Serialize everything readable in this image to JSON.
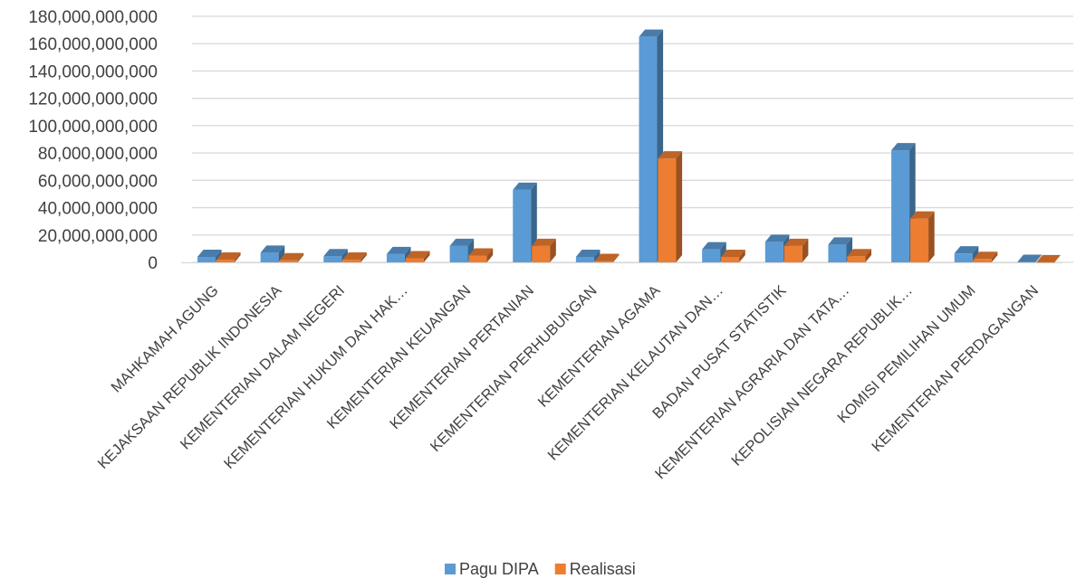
{
  "chart_data": {
    "type": "bar",
    "title": "",
    "xlabel": "",
    "ylabel": "",
    "ylim": [
      0,
      180000000000
    ],
    "yticks": [
      0,
      20000000000,
      40000000000,
      60000000000,
      80000000000,
      100000000000,
      120000000000,
      140000000000,
      160000000000,
      180000000000
    ],
    "ytick_labels": [
      "0",
      "20,000,000,000",
      "40,000,000,000",
      "60,000,000,000",
      "80,000,000,000",
      "100,000,000,000",
      "120,000,000,000",
      "140,000,000,000",
      "160,000,000,000",
      "180,000,000,000"
    ],
    "grid": true,
    "legend_position": "bottom",
    "categories": [
      "MAHKAMAH AGUNG",
      "KEJAKSAAN REPUBLIK INDONESIA",
      "KEMENTERIAN DALAM  NEGERI",
      "KEMENTERIAN HUKUM DAN HAK…",
      "KEMENTERIAN KEUANGAN",
      "KEMENTERIAN PERTANIAN",
      "KEMENTERIAN PERHUBUNGAN",
      "KEMENTERIAN AGAMA",
      "KEMENTERIAN KELAUTAN DAN…",
      "BADAN PUSAT STATISTIK",
      "KEMENTERIAN AGRARIA DAN TATA…",
      "KEPOLISIAN NEGARA REPUBLIK…",
      "KOMISI PEMILIHAN UMUM",
      "KEMENTERIAN PERDAGANGAN"
    ],
    "series": [
      {
        "name": "Pagu DIPA",
        "color": "#5B9BD5",
        "values": [
          4000000000,
          7000000000,
          4500000000,
          6000000000,
          12000000000,
          53000000000,
          4000000000,
          165000000000,
          9500000000,
          15000000000,
          13000000000,
          82000000000,
          6500000000,
          300000000
        ]
      },
      {
        "name": "Realisasi",
        "color": "#ED7D31",
        "values": [
          2000000000,
          1500000000,
          2000000000,
          3000000000,
          5000000000,
          12000000000,
          1000000000,
          76000000000,
          4000000000,
          12000000000,
          4500000000,
          32000000000,
          2500000000,
          100000000
        ]
      }
    ]
  }
}
